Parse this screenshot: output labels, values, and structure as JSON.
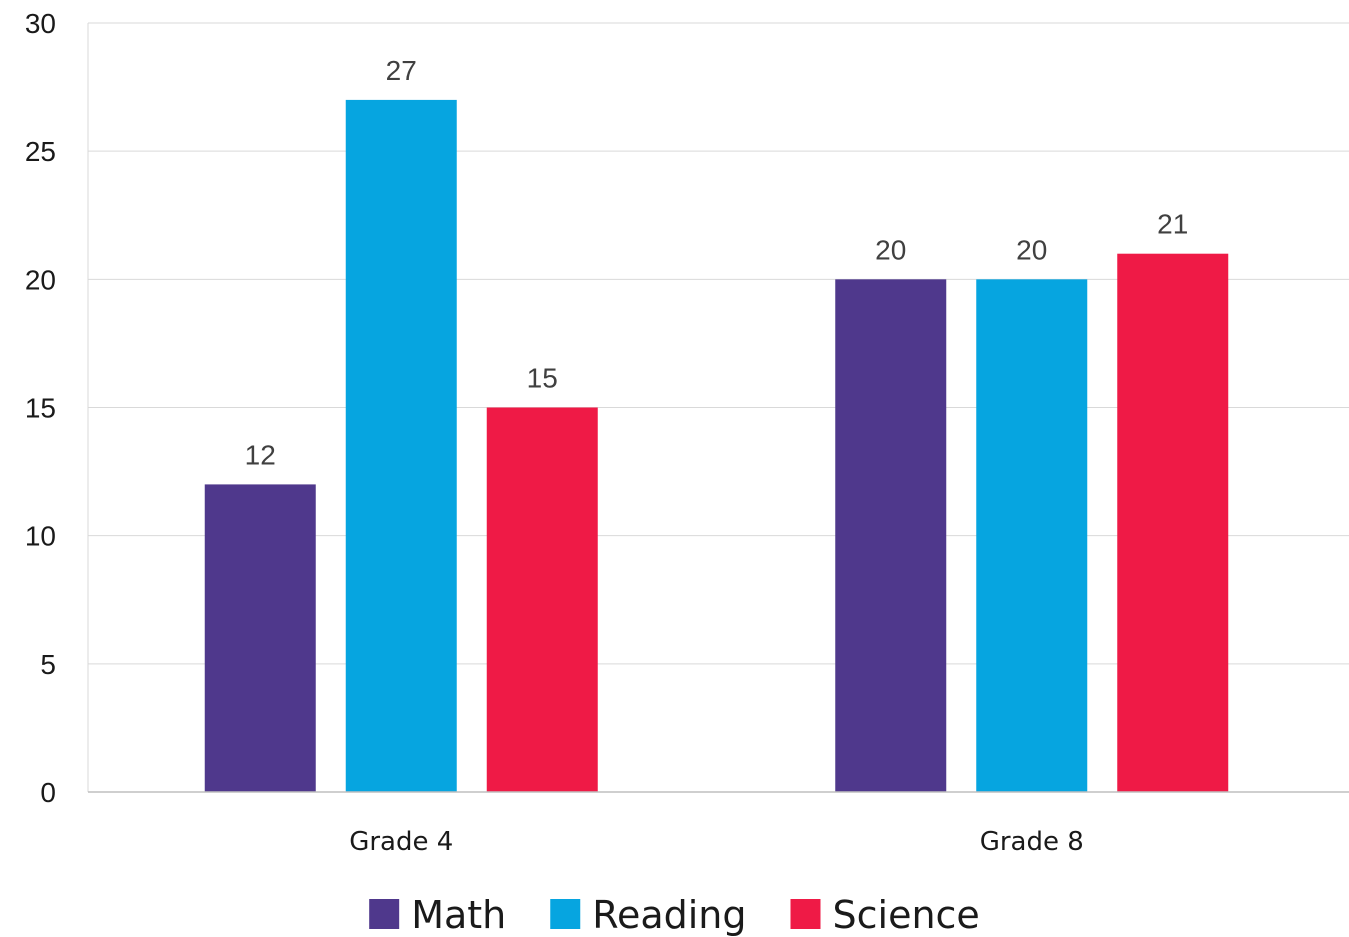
{
  "chart_data": {
    "type": "bar",
    "categories": [
      "Grade 4",
      "Grade 8"
    ],
    "series": [
      {
        "name": "Math",
        "values": [
          12,
          20
        ],
        "color": "#4f388c"
      },
      {
        "name": "Reading",
        "values": [
          27,
          20
        ],
        "color": "#06a5e0"
      },
      {
        "name": "Science",
        "values": [
          15,
          21
        ],
        "color": "#ef1a46"
      }
    ],
    "ylim": [
      0,
      30
    ],
    "yticks": [
      0,
      5,
      10,
      15,
      20,
      25,
      30
    ],
    "grid": true,
    "legend": "bottom-center",
    "data_labels": true
  }
}
